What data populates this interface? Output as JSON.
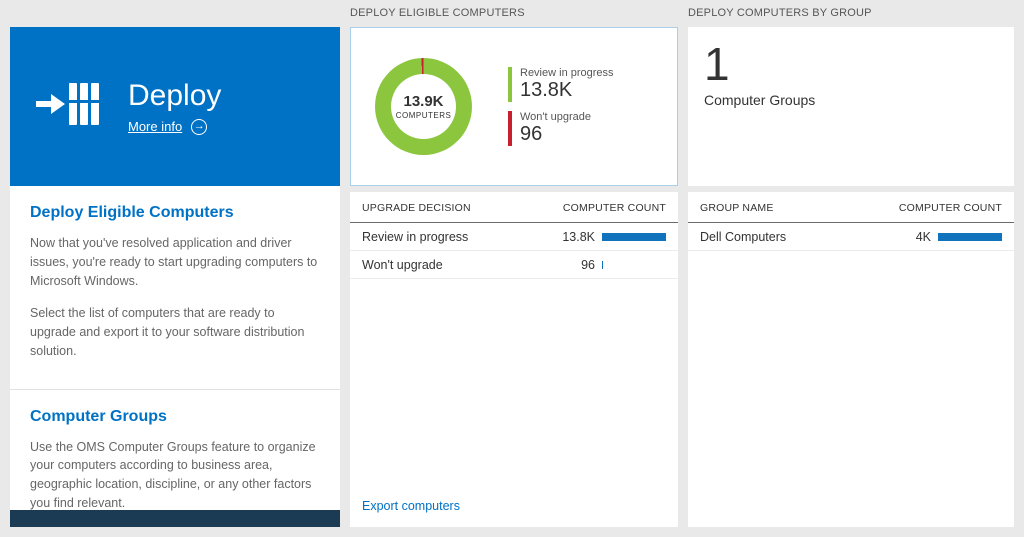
{
  "colors": {
    "tile_blue": "#0072c6",
    "heading_blue": "#0072c6",
    "bar_blue": "#1273bd",
    "donut_green": "#8cc63f",
    "donut_red": "#c8202e",
    "footer_dark": "#1b3a54"
  },
  "left": {
    "tile": {
      "title": "Deploy",
      "more_info": "More info",
      "arrow_glyph": "→"
    },
    "sections": [
      {
        "heading": "Deploy Eligible Computers",
        "paragraphs": [
          "Now that you've resolved application and driver issues, you're ready to start upgrading computers to Microsoft Windows.",
          "Select the list of computers that are ready to upgrade and export it to your software distribution solution."
        ]
      },
      {
        "heading": "Computer Groups",
        "paragraphs": [
          "Use the OMS Computer Groups feature to organize your computers according to business area, geographic location, discipline, or any other factors you find relevant."
        ]
      }
    ]
  },
  "middle": {
    "header": "DEPLOY ELIGIBLE COMPUTERS",
    "donut": {
      "center_value": "13.9K",
      "center_label": "COMPUTERS",
      "legend": [
        {
          "label": "Review in progress",
          "value": "13.8K",
          "color": "#8cc63f"
        },
        {
          "label": "Won't upgrade",
          "value": "96",
          "color": "#c8202e"
        }
      ]
    },
    "table": {
      "columns": [
        "UPGRADE DECISION",
        "COMPUTER COUNT"
      ],
      "rows": [
        {
          "label": "Review in progress",
          "value": "13.8K",
          "bar_pct": 100
        },
        {
          "label": "Won't upgrade",
          "value": "96",
          "bar_pct": 1
        }
      ]
    },
    "footer_link": "Export computers"
  },
  "right": {
    "header": "DEPLOY COMPUTERS BY GROUP",
    "summary": {
      "value": "1",
      "label": "Computer Groups"
    },
    "table": {
      "columns": [
        "GROUP NAME",
        "COMPUTER COUNT"
      ],
      "rows": [
        {
          "label": "Dell Computers",
          "value": "4K",
          "bar_pct": 100
        }
      ]
    }
  },
  "chart_data": {
    "type": "pie",
    "title": "Deploy Eligible Computers",
    "center": {
      "value": "13.9K",
      "label": "COMPUTERS"
    },
    "segments": [
      {
        "label": "Review in progress",
        "value": 13800,
        "color": "#8cc63f"
      },
      {
        "label": "Won't upgrade",
        "value": 96,
        "color": "#c8202e"
      }
    ],
    "legend_position": "right"
  }
}
